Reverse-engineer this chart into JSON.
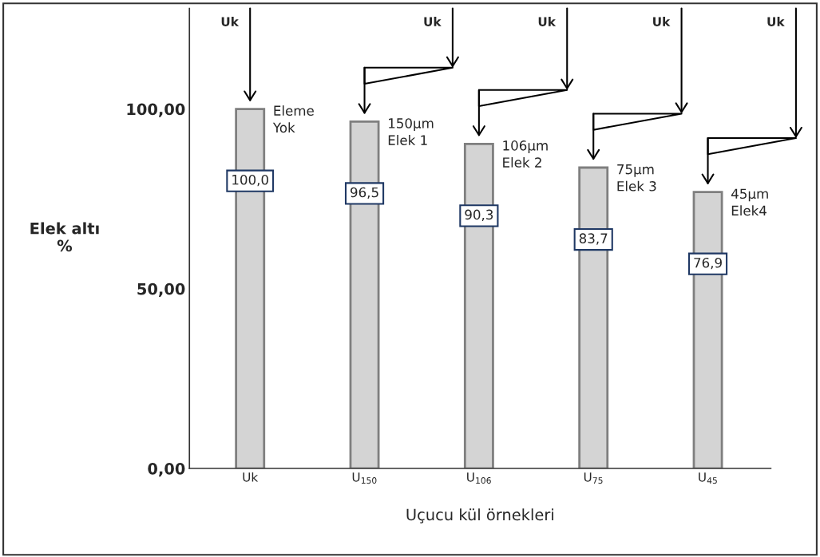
{
  "chart_data": {
    "type": "bar",
    "xlabel": "Uçucu kül örnekleri",
    "ylabel": "Elek altı\n%",
    "categories": [
      "Uk",
      "U$_{150}$",
      "U$_{106}$",
      "U$_{75}$",
      "U$_{45}$"
    ],
    "values": [
      100.0,
      96.5,
      90.3,
      83.7,
      76.9
    ],
    "value_labels": [
      "100,0",
      "96,5",
      "90,3",
      "83,7",
      "76,9"
    ],
    "color": "#d4d4d4",
    "ylim": [
      0,
      128
    ],
    "yticks": [
      {
        "value": 0,
        "label": "0,00"
      },
      {
        "value": 50,
        "label": "50,00"
      },
      {
        "value": 100,
        "label": "100,00"
      }
    ],
    "grid": false,
    "legend": false,
    "annotations": [
      {
        "text": "Eleme\nYok",
        "x": "Uk",
        "y": 100.0
      },
      {
        "text": "150µm\nElek 1",
        "x": "U$_{150}$",
        "y": 96.5
      },
      {
        "text": "106µm\nElek 2",
        "x": "U$_{106}$",
        "y": 90.3
      },
      {
        "text": "75µm\nElek 3",
        "x": "U$_{75}$",
        "y": 83.7
      },
      {
        "text": "45µm\nElek4",
        "x": "U$_{45}$",
        "y": 76.9
      },
      "Uk",
      "Uk",
      "Uk",
      "Uk",
      "Uk"
    ]
  }
}
